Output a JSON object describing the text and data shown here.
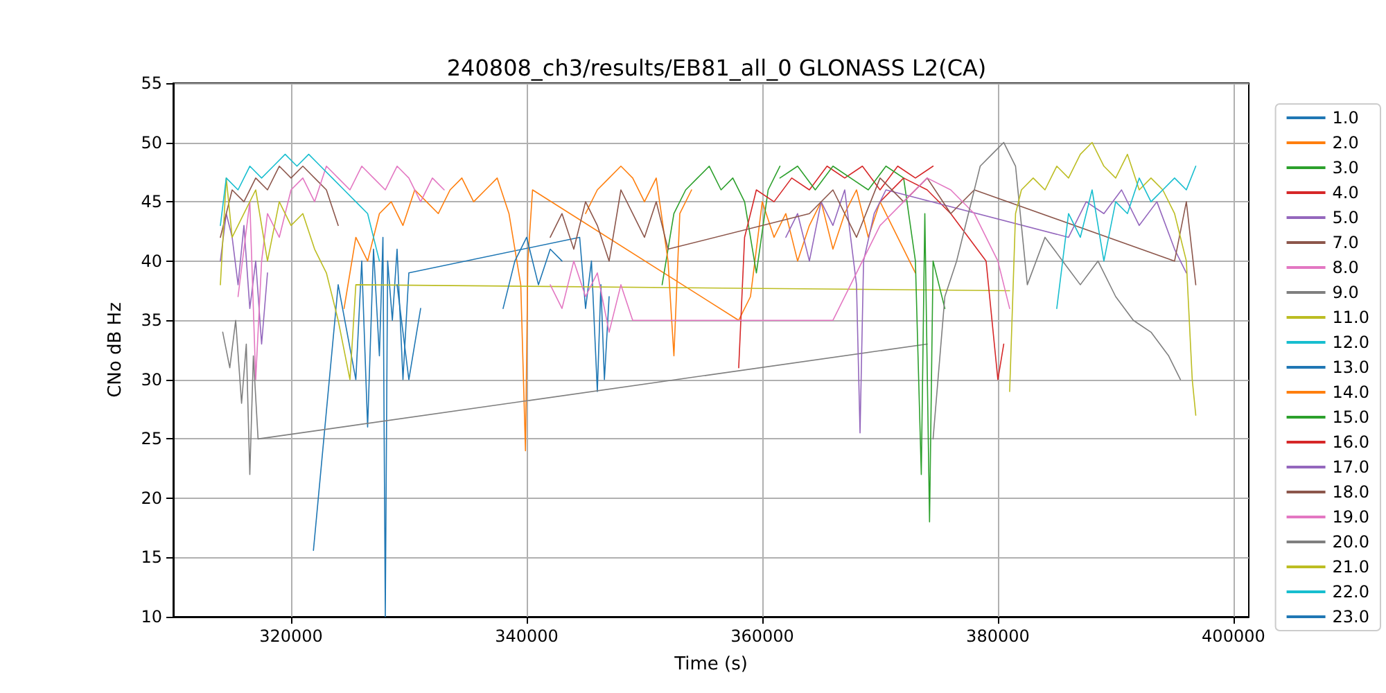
{
  "chart_data": {
    "type": "line",
    "title": "240808_ch3/results/EB81_all_0 GLONASS L2(CA)",
    "xlabel": "Time (s)",
    "ylabel": "CNo dB Hz",
    "xlim": [
      310000,
      401300
    ],
    "xticks": [
      320000,
      340000,
      360000,
      380000,
      400000
    ],
    "ylim": [
      10,
      55
    ],
    "yticks": [
      10,
      15,
      20,
      25,
      30,
      35,
      40,
      45,
      50,
      55
    ],
    "grid": true,
    "legend": "right",
    "series": [
      {
        "name": "1.0",
        "color": "#1f77b4",
        "x": [
          321900,
          324000,
          325500,
          326000,
          326500,
          327000,
          327500,
          327800,
          328000,
          328200,
          328600,
          329000,
          329500,
          330000,
          344500,
          345000,
          345500,
          346000,
          346300,
          346600,
          347000
        ],
        "values": [
          15.6,
          38,
          30,
          40,
          26,
          41,
          32,
          42,
          10,
          40,
          35,
          41,
          30,
          39,
          42,
          36,
          40,
          29,
          38,
          30,
          37
        ]
      },
      {
        "name": "2.0",
        "color": "#ff7f0e",
        "x": [
          324500,
          325500,
          326500,
          327500,
          328500,
          329500,
          330500,
          331500,
          332500,
          333500,
          334500,
          335500,
          336500,
          337500,
          338500,
          339500,
          339900,
          340100,
          340500,
          358000,
          359000,
          360000,
          361000,
          362000,
          363000,
          364000,
          365000,
          366000,
          367000,
          368000,
          369000,
          370000,
          371000,
          372000,
          373000
        ],
        "values": [
          36,
          42,
          40,
          44,
          45,
          43,
          46,
          45,
          44,
          46,
          47,
          45,
          46,
          47,
          44,
          38,
          24,
          40,
          46,
          35,
          37,
          45,
          42,
          44,
          40,
          43,
          45,
          41,
          44,
          46,
          42,
          45,
          43,
          41,
          39
        ]
      },
      {
        "name": "3.0",
        "color": "#2ca02c",
        "x": [
          351500,
          352500,
          353500,
          354500,
          355500,
          356500,
          357500,
          358500,
          359500,
          360500,
          361500
        ],
        "values": [
          38,
          44,
          46,
          47,
          48,
          46,
          47,
          45,
          39,
          46,
          48
        ]
      },
      {
        "name": "4.0",
        "color": "#d62728",
        "x": [
          358000,
          358500,
          359500,
          361000,
          362500,
          364000,
          365500,
          367000,
          368500,
          370000,
          371500,
          373000,
          374500
        ],
        "values": [
          31,
          42,
          46,
          45,
          47,
          46,
          48,
          47,
          48,
          46,
          48,
          47,
          48
        ]
      },
      {
        "name": "5.0",
        "color": "#9467bd",
        "x": [
          314000,
          314500,
          315000,
          315500,
          316000,
          316500,
          317000,
          317500,
          318000
        ],
        "values": [
          40,
          44,
          42,
          38,
          43,
          36,
          40,
          33,
          39
        ]
      },
      {
        "name": "7.0",
        "color": "#8c564b",
        "x": [
          314000,
          315000,
          316000,
          317000,
          318000,
          319000,
          320000,
          321000,
          322000,
          323000,
          324000
        ],
        "values": [
          42,
          46,
          45,
          47,
          46,
          48,
          47,
          48,
          47,
          46,
          43
        ]
      },
      {
        "name": "8.0",
        "color": "#e377c2",
        "x": [
          315500,
          316500,
          317000,
          317500,
          318000,
          319000,
          320000,
          321000,
          322000,
          323000,
          324000,
          325000,
          326000,
          327000,
          328000,
          329000,
          330000,
          331000,
          332000,
          333000
        ],
        "values": [
          37,
          45,
          30,
          40,
          44,
          42,
          46,
          47,
          45,
          48,
          47,
          46,
          48,
          47,
          46,
          48,
          47,
          45,
          47,
          46
        ]
      },
      {
        "name": "9.0",
        "color": "#7f7f7f",
        "x": [
          314200,
          314800,
          315300,
          315800,
          316200,
          316500,
          316800,
          317200,
          374000
        ],
        "values": [
          34,
          31,
          35,
          28,
          33,
          22,
          32,
          25,
          33
        ]
      },
      {
        "name": "11.0",
        "color": "#bcbd22",
        "x": [
          314000,
          314500,
          315000,
          316000,
          317000,
          318000,
          319000,
          320000,
          321000,
          322000,
          323000,
          324000,
          325000,
          325500,
          381000
        ],
        "values": [
          38,
          47,
          42,
          44,
          46,
          40,
          45,
          43,
          44,
          41,
          39,
          35,
          30,
          38,
          37.5
        ]
      },
      {
        "name": "12.0",
        "color": "#17becf",
        "x": [
          314000,
          314500,
          315500,
          316500,
          317500,
          318500,
          319500,
          320500,
          321500,
          322500,
          323500,
          324500,
          325500,
          326500,
          327500
        ],
        "values": [
          43,
          47,
          46,
          48,
          47,
          48,
          49,
          48,
          49,
          48,
          47,
          46,
          45,
          44,
          40
        ]
      },
      {
        "name": "13.0",
        "color": "#1f77b4",
        "x": [
          338000,
          339000,
          340000,
          341000,
          342000,
          343000
        ],
        "values": [
          36,
          40,
          42,
          38,
          41,
          40
        ]
      },
      {
        "name": "14.0",
        "color": "#ff7f0e",
        "x": [
          345000,
          346000,
          347000,
          348000,
          349000,
          350000,
          351000,
          352000,
          352500,
          353000,
          354000
        ],
        "values": [
          44,
          46,
          47,
          48,
          47,
          45,
          47,
          40,
          32,
          44,
          46
        ]
      },
      {
        "name": "15.0",
        "color": "#2ca02c",
        "x": [
          361500,
          363000,
          364500,
          366000,
          367500,
          369000,
          370500,
          372000,
          373000,
          373500,
          373800,
          374200,
          374500,
          375500
        ],
        "values": [
          47,
          48,
          46,
          48,
          47,
          46,
          48,
          47,
          40,
          22,
          44,
          18,
          40,
          36
        ]
      },
      {
        "name": "16.0",
        "color": "#d62728",
        "x": [
          370000,
          372000,
          374000,
          376000,
          377500,
          379000,
          380000,
          380500
        ],
        "values": [
          45,
          47,
          46,
          44,
          42,
          40,
          30,
          33
        ]
      },
      {
        "name": "17.0",
        "color": "#9467bd",
        "x": [
          362000,
          363000,
          364000,
          365000,
          366000,
          367000,
          368000,
          368300,
          368600,
          369500,
          370500,
          386000,
          387500,
          389000,
          390500,
          392000,
          393500,
          395000,
          396000
        ],
        "values": [
          42,
          44,
          40,
          45,
          43,
          46,
          38,
          25.5,
          40,
          44,
          46,
          42,
          45,
          44,
          46,
          43,
          45,
          41,
          39
        ]
      },
      {
        "name": "18.0",
        "color": "#8c564b",
        "x": [
          342000,
          343000,
          344000,
          345000,
          346000,
          347000,
          348000,
          349000,
          350000,
          351000,
          352000,
          364000,
          366000,
          368000,
          370000,
          372000,
          374000,
          376000,
          378000,
          395000,
          396000,
          396800
        ],
        "values": [
          42,
          44,
          41,
          45,
          43,
          40,
          46,
          44,
          42,
          45,
          41,
          44,
          46,
          42,
          47,
          45,
          47,
          44,
          46,
          40,
          45,
          38
        ]
      },
      {
        "name": "19.0",
        "color": "#e377c2",
        "x": [
          342000,
          343000,
          344000,
          345000,
          346000,
          347000,
          348000,
          349000,
          366000,
          368000,
          370000,
          372000,
          374000,
          376000,
          378000,
          380000,
          381000
        ],
        "values": [
          38,
          36,
          40,
          37,
          39,
          34,
          38,
          35,
          35,
          39,
          43,
          45,
          47,
          46,
          44,
          40,
          36
        ]
      },
      {
        "name": "20.0",
        "color": "#7f7f7f",
        "x": [
          374500,
          375500,
          376500,
          377500,
          378500,
          379500,
          380500,
          381500,
          382500,
          384000,
          385500,
          387000,
          388500,
          390000,
          391500,
          393000,
          394500,
          395500
        ],
        "values": [
          25,
          37,
          40,
          44,
          48,
          49,
          50,
          48,
          38,
          42,
          40,
          38,
          40,
          37,
          35,
          34,
          32,
          30
        ]
      },
      {
        "name": "21.0",
        "color": "#bcbd22",
        "x": [
          381000,
          381500,
          382000,
          383000,
          384000,
          385000,
          386000,
          387000,
          388000,
          389000,
          390000,
          391000,
          392000,
          393000,
          394000,
          395000,
          396000,
          396500,
          396800
        ],
        "values": [
          29,
          44,
          46,
          47,
          46,
          48,
          47,
          49,
          50,
          48,
          47,
          49,
          46,
          47,
          46,
          44,
          40,
          30,
          27
        ]
      },
      {
        "name": "22.0",
        "color": "#17becf",
        "x": [
          385000,
          386000,
          387000,
          388000,
          389000,
          390000,
          391000,
          392000,
          393000,
          394000,
          395000,
          396000,
          396800
        ],
        "values": [
          36,
          44,
          42,
          46,
          40,
          45,
          44,
          47,
          45,
          46,
          47,
          46,
          48
        ]
      },
      {
        "name": "23.0",
        "color": "#1f77b4",
        "x": [
          329000,
          330000,
          331000
        ],
        "values": [
          38,
          30,
          36
        ]
      }
    ]
  }
}
